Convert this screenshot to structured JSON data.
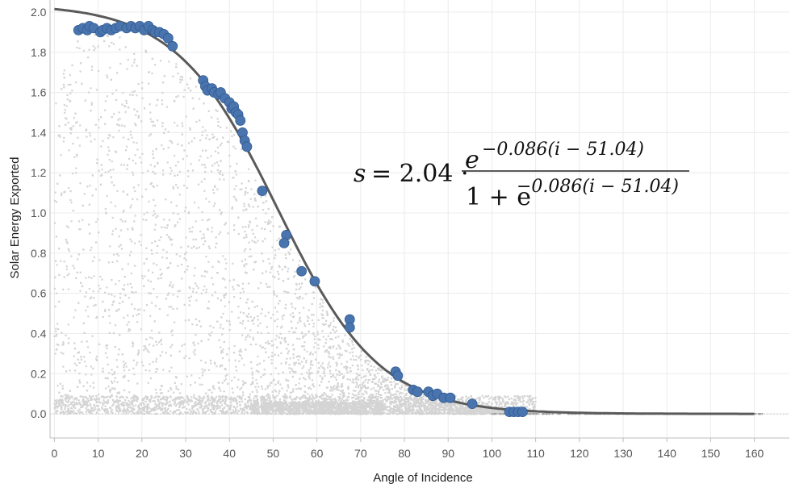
{
  "chart_data": {
    "type": "scatter",
    "xlabel": "Angle of Incidence",
    "ylabel": "Solar Energy Exported",
    "xlim": [
      -1,
      168
    ],
    "ylim": [
      -0.12,
      2.06
    ],
    "x_ticks": [
      "0",
      "10",
      "20",
      "30",
      "40",
      "50",
      "60",
      "70",
      "80",
      "90",
      "100",
      "110",
      "120",
      "130",
      "140",
      "150",
      "160"
    ],
    "y_ticks": [
      "0.0",
      "0.2",
      "0.4",
      "0.6",
      "0.8",
      "1.0",
      "1.2",
      "1.4",
      "1.6",
      "1.8",
      "2.0"
    ],
    "grid": true,
    "equation": {
      "lhs": "s",
      "coef": "= 2.04 ·",
      "num_base": "e",
      "num_exp": "−0.086(i − 51.04)",
      "den_prefix": "1 + e",
      "den_exp": "−0.086(i − 51.04)"
    },
    "fit_curve": {
      "formula": "s = 2.04 * exp(-0.086*(i-51.04)) / (1 + exp(-0.086*(i-51.04)))",
      "A": 2.04,
      "k": 0.086,
      "x0": 51.04,
      "x_range": [
        0,
        160
      ],
      "color": "#5a5a5a"
    },
    "background_cloud": {
      "color": "#d4d4d4",
      "x_range": [
        0,
        162
      ]
    },
    "highlight_color": "#4a74ad",
    "highlight_points": [
      {
        "x": 5.5,
        "y": 1.91
      },
      {
        "x": 6.5,
        "y": 1.92
      },
      {
        "x": 7.5,
        "y": 1.91
      },
      {
        "x": 8.0,
        "y": 1.93
      },
      {
        "x": 9.0,
        "y": 1.92
      },
      {
        "x": 10.5,
        "y": 1.9
      },
      {
        "x": 11.0,
        "y": 1.91
      },
      {
        "x": 12.0,
        "y": 1.92
      },
      {
        "x": 13.0,
        "y": 1.91
      },
      {
        "x": 14.0,
        "y": 1.92
      },
      {
        "x": 15.0,
        "y": 1.93
      },
      {
        "x": 16.5,
        "y": 1.92
      },
      {
        "x": 17.5,
        "y": 1.93
      },
      {
        "x": 18.5,
        "y": 1.92
      },
      {
        "x": 19.5,
        "y": 1.93
      },
      {
        "x": 20.5,
        "y": 1.91
      },
      {
        "x": 21.5,
        "y": 1.93
      },
      {
        "x": 22.5,
        "y": 1.91
      },
      {
        "x": 23.0,
        "y": 1.9
      },
      {
        "x": 24.0,
        "y": 1.9
      },
      {
        "x": 25.0,
        "y": 1.89
      },
      {
        "x": 26.0,
        "y": 1.87
      },
      {
        "x": 27.0,
        "y": 1.83
      },
      {
        "x": 34.0,
        "y": 1.66
      },
      {
        "x": 34.5,
        "y": 1.63
      },
      {
        "x": 35.0,
        "y": 1.61
      },
      {
        "x": 36.0,
        "y": 1.62
      },
      {
        "x": 36.5,
        "y": 1.6
      },
      {
        "x": 37.5,
        "y": 1.59
      },
      {
        "x": 38.0,
        "y": 1.6
      },
      {
        "x": 39.0,
        "y": 1.57
      },
      {
        "x": 40.0,
        "y": 1.55
      },
      {
        "x": 40.5,
        "y": 1.52
      },
      {
        "x": 41.0,
        "y": 1.53
      },
      {
        "x": 41.5,
        "y": 1.5
      },
      {
        "x": 42.0,
        "y": 1.49
      },
      {
        "x": 42.5,
        "y": 1.46
      },
      {
        "x": 43.0,
        "y": 1.4
      },
      {
        "x": 43.5,
        "y": 1.36
      },
      {
        "x": 44.0,
        "y": 1.33
      },
      {
        "x": 47.5,
        "y": 1.11
      },
      {
        "x": 53.0,
        "y": 0.89
      },
      {
        "x": 52.5,
        "y": 0.85
      },
      {
        "x": 56.5,
        "y": 0.71
      },
      {
        "x": 59.5,
        "y": 0.66
      },
      {
        "x": 67.5,
        "y": 0.47
      },
      {
        "x": 67.5,
        "y": 0.43
      },
      {
        "x": 78.0,
        "y": 0.21
      },
      {
        "x": 78.5,
        "y": 0.19
      },
      {
        "x": 82.0,
        "y": 0.12
      },
      {
        "x": 83.0,
        "y": 0.11
      },
      {
        "x": 85.5,
        "y": 0.11
      },
      {
        "x": 86.5,
        "y": 0.09
      },
      {
        "x": 87.5,
        "y": 0.1
      },
      {
        "x": 89.0,
        "y": 0.08
      },
      {
        "x": 90.5,
        "y": 0.08
      },
      {
        "x": 95.5,
        "y": 0.05
      },
      {
        "x": 104.0,
        "y": 0.01
      },
      {
        "x": 105.0,
        "y": 0.01
      },
      {
        "x": 106.0,
        "y": 0.01
      },
      {
        "x": 107.0,
        "y": 0.01
      }
    ]
  }
}
